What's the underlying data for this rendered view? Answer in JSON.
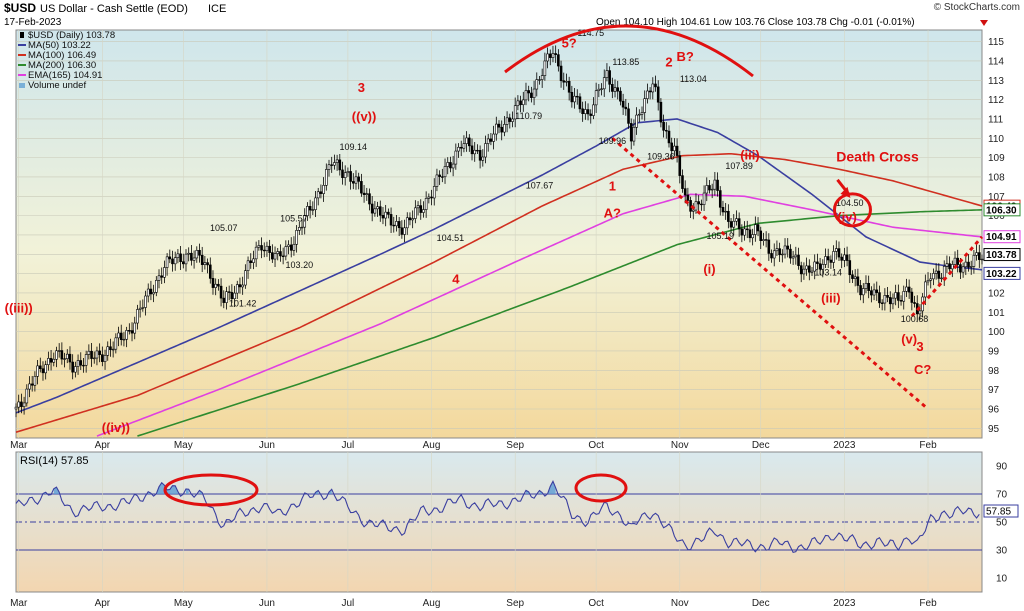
{
  "header": {
    "symbol": "$USD",
    "name": "US Dollar - Cash Settle (EOD)",
    "exchange": "ICE",
    "date": "17-Feb-2023",
    "ohlc": "Open 104.10  High 104.61  Low 103.76  Close 103.78  Chg -0.01 (-0.01%)",
    "watermark": "© StockCharts.com",
    "arrow_color": "#d01010"
  },
  "legend": [
    {
      "text": "$USD (Daily) 103.78",
      "color": "#000000",
      "icon": "candle-icon"
    },
    {
      "text": "MA(50) 103.22",
      "color": "#3a3fa0",
      "icon": "line-icon"
    },
    {
      "text": "MA(100) 106.49",
      "color": "#d03020",
      "icon": "line-icon"
    },
    {
      "text": "MA(200) 106.30",
      "color": "#2e8b2e",
      "icon": "line-icon"
    },
    {
      "text": "EMA(165) 104.91",
      "color": "#e040e0",
      "icon": "line-icon"
    },
    {
      "text": "Volume undef",
      "color": "#7ab0d8",
      "icon": "bar-icon"
    }
  ],
  "rsi_label": "RSI(14) 57.85",
  "chart_data": [
    {
      "type": "candlestick",
      "title": "$USD US Dollar - Cash Settle (EOD) ICE",
      "ylim": [
        94.5,
        115.6
      ],
      "yticks": [
        95,
        96,
        97,
        98,
        99,
        100,
        101,
        102,
        103,
        104,
        105,
        106,
        107,
        108,
        109,
        110,
        111,
        112,
        113,
        114,
        115
      ],
      "x_tick_labels": [
        "Mar",
        "Apr",
        "May",
        "Jun",
        "Jul",
        "Aug",
        "Sep",
        "Oct",
        "Nov",
        "Dec",
        "2023",
        "Feb"
      ],
      "x_tick_days": [
        16,
        47,
        77,
        108,
        138,
        169,
        200,
        230,
        261,
        291,
        322,
        353
      ],
      "x_range_days": [
        15,
        373
      ],
      "price_series": {
        "name": "$USD (Daily)",
        "x_days": [
          15,
          22,
          29,
          36,
          44,
          50,
          57,
          63,
          70,
          78,
          85,
          92,
          98,
          106,
          112,
          118,
          124,
          132,
          138,
          145,
          152,
          159,
          166,
          172,
          180,
          187,
          194,
          201,
          208,
          214,
          221,
          227,
          234,
          239,
          243,
          246,
          251,
          255,
          259,
          263,
          266,
          270,
          274,
          279,
          284,
          289,
          294,
          298,
          302,
          307,
          312,
          318,
          322,
          328,
          334,
          338,
          342,
          346,
          349,
          354,
          358,
          362,
          367,
          372
        ],
        "values": [
          96.0,
          97.6,
          98.9,
          98.3,
          98.7,
          99.1,
          100.1,
          101.6,
          103.4,
          104.0,
          103.6,
          101.5,
          102.5,
          104.6,
          103.7,
          104.8,
          106.3,
          108.7,
          108.2,
          106.9,
          105.8,
          105.4,
          106.6,
          107.9,
          109.7,
          109.2,
          110.5,
          111.6,
          112.9,
          114.5,
          112.0,
          111.3,
          113.2,
          112.2,
          110.0,
          111.5,
          112.8,
          110.5,
          109.5,
          106.7,
          106.5,
          107.0,
          107.6,
          105.7,
          105.2,
          105.3,
          104.1,
          104.3,
          103.9,
          103.3,
          103.2,
          104.2,
          103.6,
          102.3,
          101.8,
          101.8,
          101.5,
          102.4,
          100.8,
          103.0,
          103.1,
          103.4,
          103.5,
          103.78
        ],
        "color": "#000000"
      },
      "moving_averages": [
        {
          "name": "MA(50)",
          "color": "#3a3fa0",
          "x_days": [
            15,
            30,
            60,
            90,
            120,
            150,
            170,
            190,
            210,
            230,
            245,
            260,
            275,
            290,
            310,
            330,
            350,
            360,
            373
          ],
          "values": [
            95.8,
            96.6,
            98.4,
            100.2,
            102.1,
            104.0,
            105.3,
            106.7,
            108.1,
            109.6,
            110.8,
            111.0,
            110.3,
            109.1,
            107.1,
            104.9,
            103.6,
            103.4,
            103.2
          ]
        },
        {
          "name": "MA(100)",
          "color": "#d03020",
          "x_days": [
            15,
            60,
            120,
            170,
            210,
            240,
            262,
            280,
            300,
            320,
            340,
            373
          ],
          "values": [
            94.8,
            96.7,
            100.2,
            103.6,
            106.5,
            108.4,
            109.1,
            109.2,
            108.9,
            108.4,
            107.8,
            106.5
          ]
        },
        {
          "name": "EMA(165)",
          "color": "#e040e0",
          "x_days": [
            45,
            90,
            150,
            200,
            240,
            265,
            285,
            310,
            340,
            373
          ],
          "values": [
            94.6,
            97.0,
            100.4,
            103.6,
            106.1,
            107.1,
            107.0,
            106.3,
            105.4,
            104.9
          ]
        },
        {
          "name": "MA(200)",
          "color": "#2e8b2e",
          "x_days": [
            60,
            120,
            170,
            220,
            260,
            290,
            320,
            350,
            373
          ],
          "values": [
            94.6,
            97.3,
            99.7,
            102.3,
            104.5,
            105.6,
            106.0,
            106.2,
            106.3
          ]
        }
      ],
      "last_value_markers": [
        {
          "text": "106.49",
          "value": 106.49,
          "color": "#d03020"
        },
        {
          "text": "106.30",
          "value": 106.3,
          "color": "#2e8b2e"
        },
        {
          "text": "104.91",
          "value": 104.91,
          "color": "#e040e0"
        },
        {
          "text": "103.78",
          "value": 103.78,
          "color": "#000000"
        },
        {
          "text": "103.22",
          "value": 103.22,
          "color": "#3a3fa0"
        }
      ],
      "price_annotations": [
        {
          "text": "105.07",
          "x": 92,
          "y": 105.2
        },
        {
          "text": "101.42",
          "x": 99,
          "y": 101.3
        },
        {
          "text": "105.57",
          "x": 118,
          "y": 105.7
        },
        {
          "text": "103.20",
          "x": 120,
          "y": 103.3
        },
        {
          "text": "109.14",
          "x": 140,
          "y": 109.4
        },
        {
          "text": "104.51",
          "x": 176,
          "y": 104.7
        },
        {
          "text": "110.79",
          "x": 205,
          "y": 111.0
        },
        {
          "text": "107.67",
          "x": 209,
          "y": 107.4
        },
        {
          "text": "114.75",
          "x": 228,
          "y": 115.3
        },
        {
          "text": "113.85",
          "x": 241,
          "y": 113.8
        },
        {
          "text": "109.96",
          "x": 236,
          "y": 109.7
        },
        {
          "text": "109.36",
          "x": 254,
          "y": 108.9
        },
        {
          "text": "113.04",
          "x": 266,
          "y": 112.9
        },
        {
          "text": "107.89",
          "x": 283,
          "y": 108.4
        },
        {
          "text": "105.19",
          "x": 276,
          "y": 104.8
        },
        {
          "text": "103.14",
          "x": 316,
          "y": 102.9
        },
        {
          "text": "104.50",
          "x": 324,
          "y": 106.5
        },
        {
          "text": "100.68",
          "x": 348,
          "y": 100.5
        }
      ],
      "wave_labels": [
        {
          "text": "((iii))",
          "x": 16,
          "y": 101.0
        },
        {
          "text": "3",
          "x": 143,
          "y": 112.4
        },
        {
          "text": "((v))",
          "x": 144,
          "y": 110.9
        },
        {
          "text": "5?",
          "x": 220,
          "y": 114.7
        },
        {
          "text": "2",
          "x": 257,
          "y": 113.7
        },
        {
          "text": "B?",
          "x": 263,
          "y": 114.0
        },
        {
          "text": "1",
          "x": 236,
          "y": 107.3
        },
        {
          "text": "A?",
          "x": 236,
          "y": 105.9
        },
        {
          "text": "4",
          "x": 178,
          "y": 102.5
        },
        {
          "text": "((iv))",
          "x": 52,
          "y": 94.8
        },
        {
          "text": "(iii)",
          "x": 287,
          "y": 108.9
        },
        {
          "text": "(i)",
          "x": 272,
          "y": 103.0
        },
        {
          "text": "(iii)",
          "x": 317,
          "y": 101.5
        },
        {
          "text": "(iv)",
          "x": 323,
          "y": 105.7
        },
        {
          "text": "(v)",
          "x": 346,
          "y": 99.4
        },
        {
          "text": "3",
          "x": 350,
          "y": 99.0
        },
        {
          "text": "C?",
          "x": 351,
          "y": 97.8
        }
      ],
      "death_cross": {
        "text": "Death Cross",
        "x": 319,
        "y": 108.8,
        "circle_x": 325,
        "circle_y": 106.3
      },
      "trendlines": [
        {
          "from": [
            236,
            110.0
          ],
          "to": [
            353,
            96.0
          ]
        },
        {
          "from": [
            347,
            100.8
          ],
          "to": [
            373,
            104.9
          ]
        }
      ]
    },
    {
      "type": "line",
      "title": "RSI(14) 57.85",
      "ylim": [
        0,
        100
      ],
      "yticks": [
        10,
        30,
        50,
        70,
        90
      ],
      "reference_lines": [
        30,
        50,
        70
      ],
      "last_value": "57.85",
      "x_days": [
        15,
        22,
        29,
        36,
        44,
        50,
        57,
        63,
        70,
        78,
        85,
        92,
        98,
        106,
        112,
        118,
        124,
        132,
        138,
        145,
        152,
        159,
        166,
        172,
        180,
        187,
        194,
        201,
        208,
        214,
        221,
        227,
        234,
        239,
        243,
        246,
        251,
        255,
        259,
        263,
        266,
        270,
        274,
        279,
        284,
        289,
        294,
        298,
        302,
        307,
        312,
        318,
        322,
        328,
        334,
        338,
        342,
        346,
        349,
        354,
        358,
        362,
        367,
        372
      ],
      "values": [
        60,
        67,
        72,
        58,
        60,
        62,
        64,
        70,
        74,
        73,
        66,
        48,
        55,
        62,
        55,
        63,
        68,
        72,
        60,
        50,
        46,
        45,
        58,
        60,
        66,
        61,
        63,
        66,
        70,
        76,
        56,
        50,
        62,
        55,
        44,
        52,
        58,
        48,
        40,
        34,
        35,
        38,
        44,
        36,
        34,
        33,
        33,
        35,
        33,
        32,
        35,
        42,
        38,
        34,
        36,
        33,
        34,
        40,
        33,
        52,
        57,
        55,
        58,
        57.85
      ],
      "color": "#3a3fa0"
    }
  ]
}
